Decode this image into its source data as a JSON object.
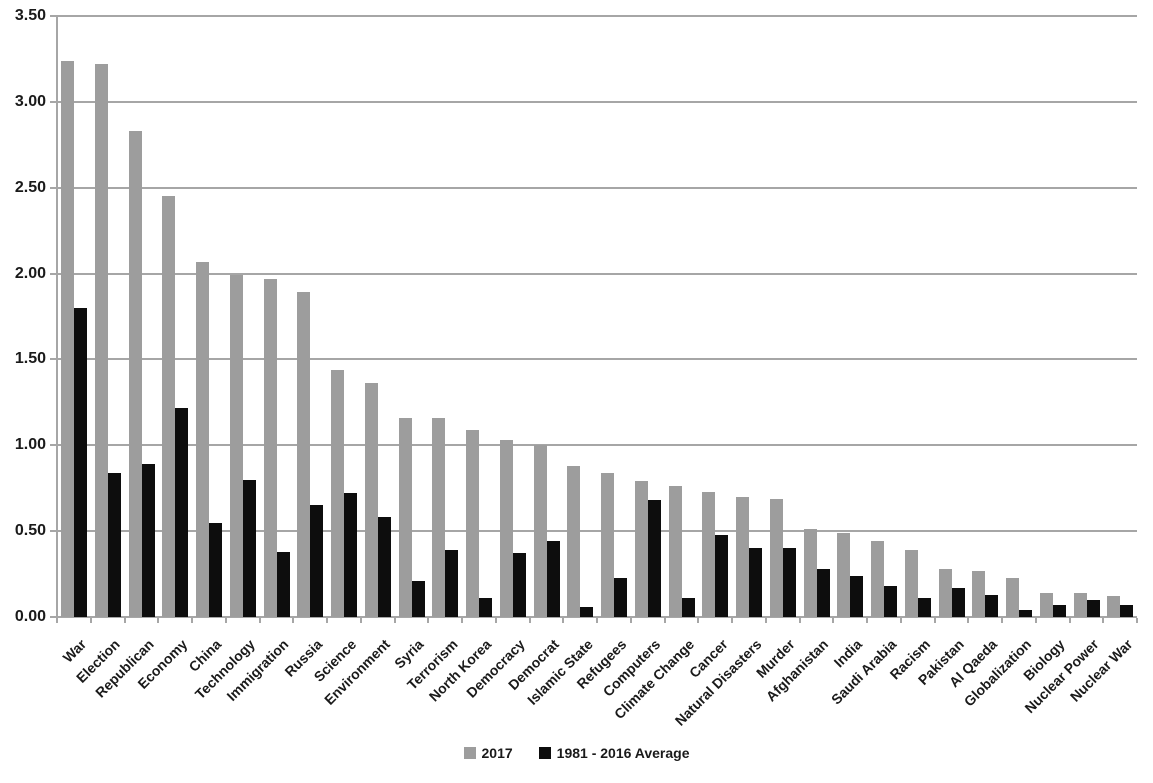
{
  "chart_data": {
    "type": "bar",
    "title": "",
    "xlabel": "",
    "ylabel": "",
    "categories": [
      "War",
      "Election",
      "Republican",
      "Economy",
      "China",
      "Technology",
      "Immigration",
      "Russia",
      "Science",
      "Environment",
      "Syria",
      "Terrorism",
      "North Korea",
      "Democracy",
      "Democrat",
      "Islamic State",
      "Refugees",
      "Computers",
      "Climate Change",
      "Cancer",
      "Natural Disasters",
      "Murder",
      "Afghanistan",
      "India",
      "Saudi Arabia",
      "Racism",
      "Pakistan",
      "Al Qaeda",
      "Globalization",
      "Biology",
      "Nuclear Power",
      "Nuclear War"
    ],
    "series": [
      {
        "name": "2017",
        "color": "#9d9d9d",
        "values": [
          3.24,
          3.22,
          2.83,
          2.45,
          2.07,
          1.99,
          1.97,
          1.89,
          1.44,
          1.36,
          1.16,
          1.16,
          1.09,
          1.03,
          1.0,
          0.88,
          0.84,
          0.79,
          0.76,
          0.73,
          0.7,
          0.69,
          0.51,
          0.49,
          0.44,
          0.39,
          0.28,
          0.27,
          0.23,
          0.14,
          0.14,
          0.12
        ]
      },
      {
        "name": "1981 - 2016 Average",
        "color": "#0d0d0d",
        "values": [
          1.8,
          0.84,
          0.89,
          1.22,
          0.55,
          0.8,
          0.38,
          0.65,
          0.72,
          0.58,
          0.21,
          0.39,
          0.11,
          0.37,
          0.44,
          0.06,
          0.23,
          0.68,
          0.11,
          0.48,
          0.4,
          0.4,
          0.28,
          0.24,
          0.18,
          0.11,
          0.17,
          0.13,
          0.04,
          0.07,
          0.1,
          0.07
        ]
      }
    ],
    "ylim": [
      0,
      3.5
    ],
    "ytick_step": 0.5,
    "ytick_labels": [
      "0.00",
      "0.50",
      "1.00",
      "1.50",
      "2.00",
      "2.50",
      "3.00",
      "3.50"
    ],
    "grid": true,
    "legend_position": "bottom-center"
  },
  "colors": {
    "background": "#ffffff",
    "gridline": "#a6a6a6",
    "axis": "#a6a6a6",
    "text": "#1a1a1a"
  }
}
